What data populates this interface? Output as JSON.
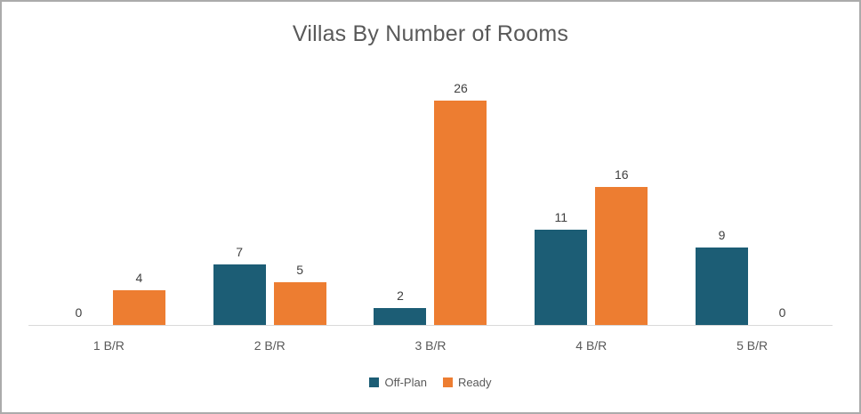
{
  "chart_data": {
    "type": "bar",
    "title": "Villas By Number of Rooms",
    "categories": [
      "1 B/R",
      "2 B/R",
      "3 B/R",
      "4 B/R",
      "5 B/R"
    ],
    "series": [
      {
        "name": "Off-Plan",
        "color": "#1c5d75",
        "values": [
          0,
          7,
          2,
          11,
          9
        ]
      },
      {
        "name": "Ready",
        "color": "#ed7d31",
        "values": [
          4,
          5,
          26,
          16,
          0
        ]
      }
    ],
    "xlabel": "",
    "ylabel": "",
    "ylim": [
      0,
      26
    ],
    "grid": false,
    "data_labels": true,
    "legend_position": "bottom"
  },
  "style": {
    "title_color": "#595959",
    "label_color": "#404040",
    "axis_label_color": "#595959",
    "axis_line_color": "#d9d9d9",
    "frame_border_color": "#ababab",
    "background": "#ffffff"
  }
}
